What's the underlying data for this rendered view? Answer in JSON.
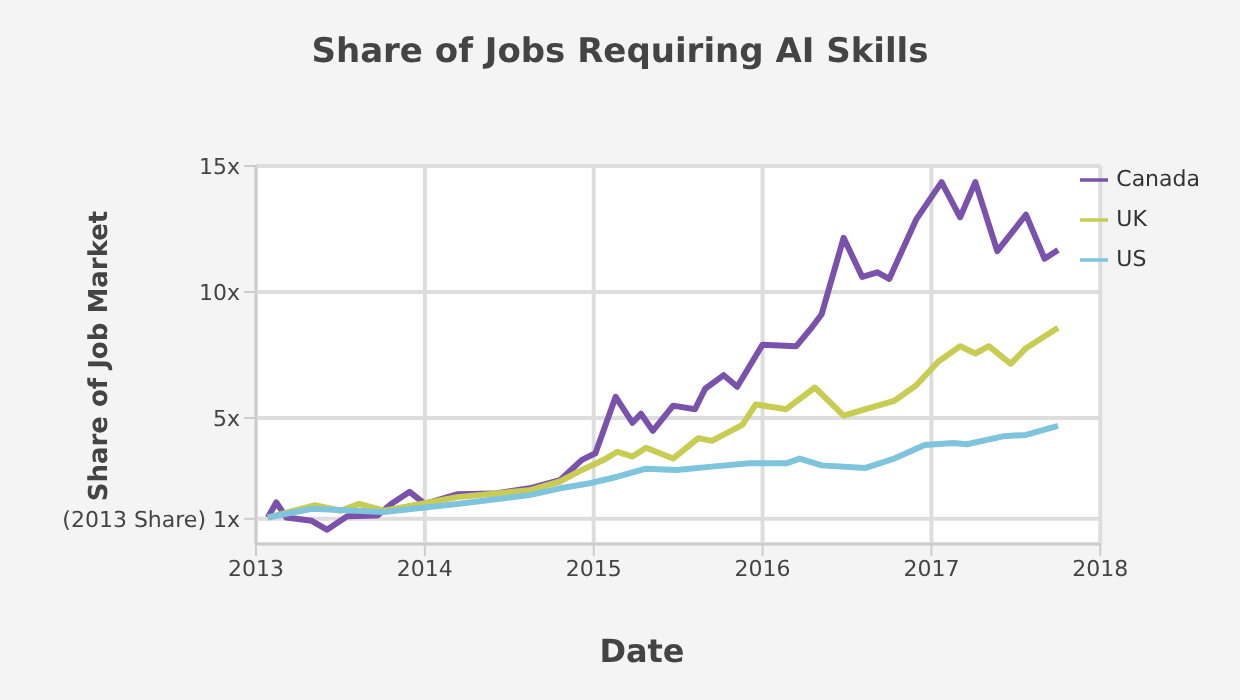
{
  "chart_data": {
    "type": "line",
    "title": "Share of Jobs Requiring AI Skills",
    "xlabel": "Date",
    "ylabel": "Share of Job Market",
    "xlim": [
      2013,
      2018
    ],
    "xticks": [
      2013,
      2014,
      2015,
      2016,
      2017,
      2018
    ],
    "ylim": [
      0,
      15
    ],
    "yticks": [
      {
        "value": 1,
        "label": "(2013 Share) 1x"
      },
      {
        "value": 5,
        "label": "5x"
      },
      {
        "value": 10,
        "label": "10x"
      },
      {
        "value": 15,
        "label": "15x"
      }
    ],
    "grid": true,
    "legend": "top right",
    "marker": "none",
    "line_style": "solid",
    "series": [
      {
        "name": "Canada",
        "color": "#7b52ab",
        "x": [
          2013.07,
          2013.12,
          2013.18,
          2013.33,
          2013.42,
          2013.54,
          2013.72,
          2013.8,
          2013.91,
          2014.0,
          2014.19,
          2014.41,
          2014.62,
          2014.8,
          2014.93,
          2015.01,
          2015.13,
          2015.23,
          2015.28,
          2015.35,
          2015.47,
          2015.6,
          2015.66,
          2015.77,
          2015.85,
          2016.0,
          2016.2,
          2016.29,
          2016.35,
          2016.48,
          2016.59,
          2016.68,
          2016.75,
          2016.91,
          2017.06,
          2017.17,
          2017.26,
          2017.39,
          2017.56,
          2017.67,
          2017.75
        ],
        "values": [
          1.05,
          1.65,
          1.05,
          0.92,
          0.57,
          1.1,
          1.13,
          1.59,
          2.07,
          1.59,
          1.97,
          2.0,
          2.21,
          2.53,
          3.34,
          3.6,
          5.84,
          4.81,
          5.17,
          4.49,
          5.49,
          5.35,
          6.16,
          6.7,
          6.24,
          7.91,
          7.85,
          8.58,
          9.12,
          12.15,
          10.6,
          10.78,
          10.52,
          12.88,
          14.36,
          12.96,
          14.36,
          11.62,
          13.07,
          11.32,
          11.67
        ]
      },
      {
        "name": "UK",
        "color": "#c9cc52",
        "x": [
          2013.07,
          2013.35,
          2013.5,
          2013.61,
          2013.76,
          2014.19,
          2014.62,
          2014.8,
          2014.93,
          2015.06,
          2015.14,
          2015.23,
          2015.31,
          2015.47,
          2015.62,
          2015.7,
          2015.88,
          2015.96,
          2016.14,
          2016.31,
          2016.48,
          2016.61,
          2016.78,
          2016.91,
          2017.04,
          2017.17,
          2017.26,
          2017.34,
          2017.47,
          2017.56,
          2017.75
        ],
        "values": [
          1.05,
          1.54,
          1.32,
          1.59,
          1.32,
          1.86,
          2.13,
          2.48,
          2.94,
          3.34,
          3.66,
          3.47,
          3.82,
          3.39,
          4.2,
          4.09,
          4.73,
          5.54,
          5.35,
          6.21,
          5.09,
          5.35,
          5.68,
          6.3,
          7.23,
          7.85,
          7.56,
          7.85,
          7.15,
          7.77,
          8.58
        ]
      },
      {
        "name": "US",
        "color": "#7ec4dd",
        "x": [
          2013.07,
          2013.33,
          2013.76,
          2014.19,
          2014.62,
          2014.8,
          2014.97,
          2015.14,
          2015.31,
          2015.49,
          2015.7,
          2015.92,
          2016.14,
          2016.22,
          2016.35,
          2016.61,
          2016.78,
          2016.96,
          2017.13,
          2017.21,
          2017.43,
          2017.56,
          2017.75
        ],
        "values": [
          1.05,
          1.4,
          1.27,
          1.59,
          1.94,
          2.21,
          2.4,
          2.67,
          2.99,
          2.94,
          3.07,
          3.2,
          3.2,
          3.39,
          3.12,
          3.02,
          3.39,
          3.93,
          4.01,
          3.96,
          4.28,
          4.33,
          4.69
        ]
      }
    ]
  }
}
